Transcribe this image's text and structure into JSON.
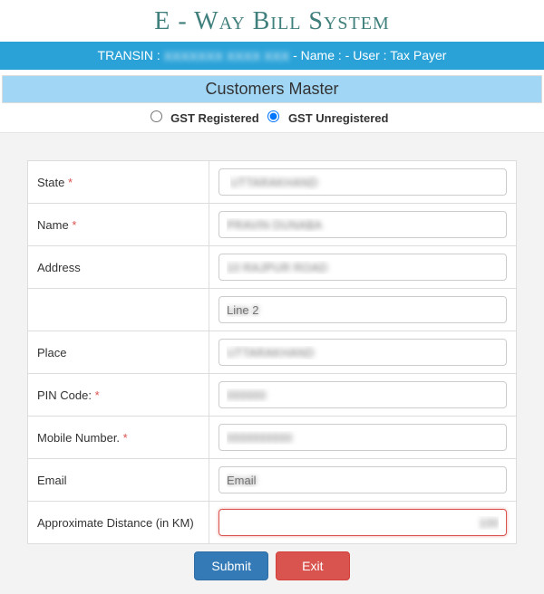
{
  "colors": {
    "title": "#3f7f7c",
    "info_bar_bg": "#2aa2d8",
    "sub_header_bg": "#a1d6f5",
    "form_bg": "#f3f3f3",
    "border": "#dddddd",
    "input_border": "#cccccc",
    "required": "#d9534f",
    "btn_primary": "#337ab7",
    "btn_danger": "#d9534f",
    "text": "#333333"
  },
  "header": {
    "title": "E - Way Bill System"
  },
  "info_bar": {
    "transin_label": "TRANSIN :",
    "transin_value": "XXXXXXX XXXX XXX",
    "name_label": "- Name : ",
    "user_label": "- User : ",
    "user_value": "Tax Payer"
  },
  "sub_header": "Customers Master",
  "gst_radio": {
    "registered_label": "GST Registered",
    "unregistered_label": "GST Unregistered",
    "selected": "unregistered"
  },
  "form": {
    "state": {
      "label": "State",
      "required": true,
      "value": "UTTARAKHAND"
    },
    "name": {
      "label": "Name",
      "required": true,
      "value": "PRAVIN DUNABA"
    },
    "address": {
      "label": "Address",
      "required": false,
      "value": "10 RAJPUR ROAD"
    },
    "address2": {
      "label": "",
      "required": false,
      "placeholder": "Line 2"
    },
    "place": {
      "label": "Place",
      "required": false,
      "value": "UTTARAKHAND"
    },
    "pin": {
      "label": "PIN Code:",
      "required": true,
      "value": "000000"
    },
    "mobile": {
      "label": "Mobile Number.",
      "required": true,
      "value": "0000000000"
    },
    "email": {
      "label": "Email",
      "required": false,
      "placeholder": "Email"
    },
    "distance": {
      "label": "Approximate Distance (in KM)",
      "required": false,
      "value": "100"
    }
  },
  "buttons": {
    "submit": "Submit",
    "exit": "Exit"
  }
}
